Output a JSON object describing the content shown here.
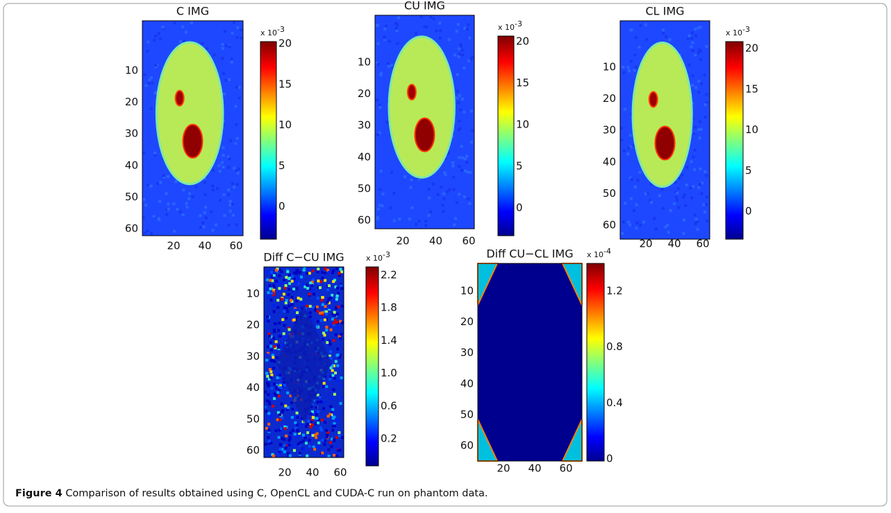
{
  "figure": {
    "panels": [
      {
        "title": "C IMG",
        "yticks": [
          10,
          20,
          30,
          40,
          50,
          60
        ],
        "xticks": [
          20,
          40,
          60
        ],
        "colorbar": {
          "multiplier": "x 10",
          "exponent": "-3",
          "ticks": [
            20,
            15,
            10,
            5,
            0
          ]
        }
      },
      {
        "title": "CU IMG",
        "yticks": [
          10,
          20,
          30,
          40,
          50,
          60
        ],
        "xticks": [
          20,
          40,
          60
        ],
        "colorbar": {
          "multiplier": "x 10",
          "exponent": "-3",
          "ticks": [
            20,
            15,
            10,
            5,
            0
          ]
        }
      },
      {
        "title": "CL IMG",
        "yticks": [
          10,
          20,
          30,
          40,
          50,
          60
        ],
        "xticks": [
          20,
          40,
          60
        ],
        "colorbar": {
          "multiplier": "x 10",
          "exponent": "-3",
          "ticks": [
            20,
            15,
            10,
            5,
            0
          ]
        }
      },
      {
        "title": "Diff C−CU IMG",
        "yticks": [
          10,
          20,
          30,
          40,
          50,
          60
        ],
        "xticks": [
          20,
          40,
          60
        ],
        "colorbar": {
          "multiplier": "x 10",
          "exponent": "-3",
          "ticks": [
            2.2,
            1.8,
            1.4,
            {
              "value": 1,
              "label": "1.0"
            },
            0.6,
            0.2
          ]
        }
      },
      {
        "title": "Diff CU−CL IMG",
        "yticks": [
          10,
          20,
          30,
          40,
          50,
          60
        ],
        "xticks": [
          20,
          40,
          60
        ],
        "colorbar": {
          "multiplier": "x 10",
          "exponent": "-4",
          "ticks": [
            1.2,
            0.8,
            0.4,
            0
          ]
        }
      }
    ],
    "caption": {
      "label": "Figure 4",
      "text": "Comparison of results obtained using C, OpenCL and CUDA-C run on phantom data."
    }
  }
}
